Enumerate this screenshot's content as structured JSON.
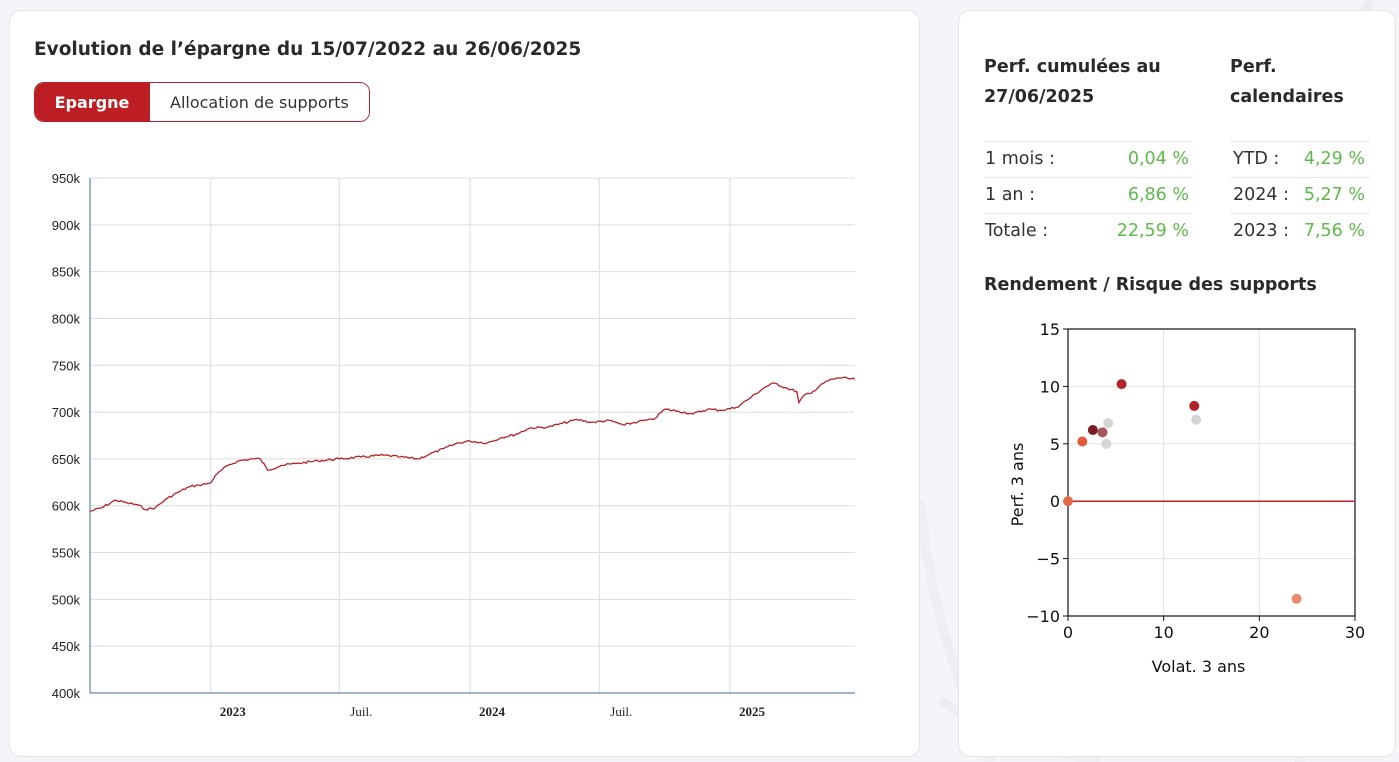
{
  "evolution": {
    "title": "Evolution de l’épargne du 15/07/2022 au 26/06/2025",
    "tabs": [
      {
        "label": "Epargne",
        "active": true
      },
      {
        "label": "Allocation de supports",
        "active": false
      }
    ]
  },
  "performance": {
    "cumul_title": "Perf. cumulées au 27/06/2025",
    "cumul_title_line1": "Perf. cumulées au",
    "cumul_title_line2": "27/06/2025",
    "calendar_title_line1": "Perf.",
    "calendar_title_line2": "calendaires",
    "cumulative": [
      {
        "label": "1 mois :",
        "value": "0,04 %"
      },
      {
        "label": "1 an :",
        "value": "6,86 %"
      },
      {
        "label": "Totale :",
        "value": "22,59 %"
      }
    ],
    "calendar": [
      {
        "label": "YTD :",
        "value": "4,29 %"
      },
      {
        "label": "2024 :",
        "value": "5,27 %"
      },
      {
        "label": "2023 :",
        "value": "7,56 %"
      }
    ],
    "value_color": "#5fb94a"
  },
  "risk": {
    "title": "Rendement / Risque des supports"
  },
  "chart_data": [
    {
      "type": "line",
      "title": "",
      "xlabel": "",
      "ylabel": "",
      "x_ticks": [
        {
          "label": "2023",
          "date": "2023-01-01",
          "bold": true
        },
        {
          "label": "Juil.",
          "date": "2023-07-01",
          "bold": false
        },
        {
          "label": "2024",
          "date": "2024-01-01",
          "bold": true
        },
        {
          "label": "Juil.",
          "date": "2024-07-01",
          "bold": false
        },
        {
          "label": "2025",
          "date": "2025-01-01",
          "bold": true
        }
      ],
      "xlim": [
        "2022-07-15",
        "2025-06-26"
      ],
      "y_ticks": [
        "400k",
        "450k",
        "500k",
        "550k",
        "600k",
        "650k",
        "700k",
        "750k",
        "800k",
        "850k",
        "900k",
        "950k"
      ],
      "ylim": [
        400000,
        950000
      ],
      "grid": true,
      "color": "#b5232a",
      "series": [
        {
          "points": [
            [
              "2022-07-15",
              594000
            ],
            [
              "2022-08-01",
              598000
            ],
            [
              "2022-08-20",
              606000
            ],
            [
              "2022-09-05",
              603000
            ],
            [
              "2022-09-20",
              601000
            ],
            [
              "2022-10-01",
              596000
            ],
            [
              "2022-10-15",
              598000
            ],
            [
              "2022-11-01",
              608000
            ],
            [
              "2022-11-15",
              614000
            ],
            [
              "2022-12-01",
              620000
            ],
            [
              "2022-12-15",
              622000
            ],
            [
              "2022-12-31",
              624000
            ],
            [
              "2023-01-10",
              634000
            ],
            [
              "2023-01-25",
              643000
            ],
            [
              "2023-02-10",
              648000
            ],
            [
              "2023-02-28",
              650000
            ],
            [
              "2023-03-12",
              650000
            ],
            [
              "2023-03-22",
              638000
            ],
            [
              "2023-04-10",
              643000
            ],
            [
              "2023-05-01",
              645000
            ],
            [
              "2023-06-01",
              648000
            ],
            [
              "2023-07-01",
              650000
            ],
            [
              "2023-08-01",
              652000
            ],
            [
              "2023-09-01",
              654000
            ],
            [
              "2023-09-25",
              652000
            ],
            [
              "2023-10-20",
              650000
            ],
            [
              "2023-11-05",
              655000
            ],
            [
              "2023-11-25",
              661000
            ],
            [
              "2023-12-15",
              667000
            ],
            [
              "2024-01-01",
              669000
            ],
            [
              "2024-01-25",
              667000
            ],
            [
              "2024-02-15",
              673000
            ],
            [
              "2024-03-05",
              676000
            ],
            [
              "2024-03-25",
              683000
            ],
            [
              "2024-04-20",
              684000
            ],
            [
              "2024-05-10",
              688000
            ],
            [
              "2024-05-31",
              692000
            ],
            [
              "2024-06-20",
              689000
            ],
            [
              "2024-07-15",
              691000
            ],
            [
              "2024-08-05",
              686000
            ],
            [
              "2024-08-25",
              690000
            ],
            [
              "2024-09-15",
              692000
            ],
            [
              "2024-10-01",
              703000
            ],
            [
              "2024-10-20",
              701000
            ],
            [
              "2024-11-10",
              698000
            ],
            [
              "2024-11-30",
              703000
            ],
            [
              "2024-12-20",
              702000
            ],
            [
              "2025-01-10",
              705000
            ],
            [
              "2025-01-31",
              716000
            ],
            [
              "2025-02-20",
              727000
            ],
            [
              "2025-03-05",
              731000
            ],
            [
              "2025-03-20",
              726000
            ],
            [
              "2025-04-05",
              722000
            ],
            [
              "2025-04-08",
              710000
            ],
            [
              "2025-04-15",
              718000
            ],
            [
              "2025-04-25",
              720000
            ],
            [
              "2025-05-10",
              730000
            ],
            [
              "2025-05-25",
              735000
            ],
            [
              "2025-06-10",
              737000
            ],
            [
              "2025-06-26",
              735000
            ]
          ]
        }
      ]
    },
    {
      "type": "scatter",
      "title": "",
      "xlabel": "Volat. 3 ans",
      "ylabel": "Perf. 3 ans",
      "xlim": [
        0,
        30
      ],
      "ylim": [
        -10,
        15
      ],
      "x_ticks": [
        "0",
        "10",
        "20",
        "30"
      ],
      "y_ticks": [
        "−10",
        "−5",
        "0",
        "5",
        "10",
        "15"
      ],
      "hline_color": "#c0212a",
      "points": [
        {
          "x": 0.0,
          "y": 0.0,
          "color": "#e36b4a"
        },
        {
          "x": 1.5,
          "y": 5.2,
          "color": "#e35a3c"
        },
        {
          "x": 2.6,
          "y": 6.2,
          "color": "#7a1a24"
        },
        {
          "x": 3.6,
          "y": 6.0,
          "color": "#a85560"
        },
        {
          "x": 4.0,
          "y": 5.0,
          "color": "#d5d5d5"
        },
        {
          "x": 4.2,
          "y": 6.8,
          "color": "#d5d5d5"
        },
        {
          "x": 5.6,
          "y": 10.2,
          "color": "#b5232a"
        },
        {
          "x": 13.2,
          "y": 8.3,
          "color": "#b5232a"
        },
        {
          "x": 13.4,
          "y": 7.1,
          "color": "#d5d5d5"
        },
        {
          "x": 23.9,
          "y": -8.5,
          "color": "#eb8a6e"
        }
      ]
    }
  ]
}
